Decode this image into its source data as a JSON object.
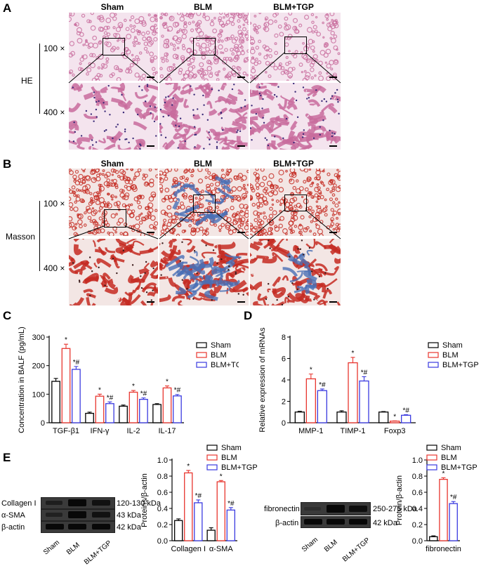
{
  "panels": {
    "A": {
      "letter": "A",
      "stain": "HE",
      "mag_low": "100 ×",
      "mag_high": "400 ×",
      "columns": [
        "Sham",
        "BLM",
        "BLM+TGP"
      ]
    },
    "B": {
      "letter": "B",
      "stain": "Masson",
      "mag_low": "100 ×",
      "mag_high": "400 ×",
      "columns": [
        "Sham",
        "BLM",
        "BLM+TGP"
      ]
    },
    "C": {
      "letter": "C"
    },
    "D": {
      "letter": "D"
    },
    "E": {
      "letter": "E",
      "blot1": {
        "proteins": [
          "Collagen I",
          "α-SMA",
          "β-actin"
        ],
        "kda": [
          "120-130 kDa",
          "43 kDa",
          "42 kDa"
        ],
        "lanes": [
          "Sham",
          "BLM",
          "BLM+TGP"
        ]
      },
      "blot2": {
        "proteins": [
          "fibronectin",
          "β-actin"
        ],
        "kda": [
          "250-275 kDa",
          "42 kDa"
        ],
        "lanes": [
          "Sham",
          "BLM",
          "BLM+TGP"
        ]
      }
    }
  },
  "colors": {
    "sham": "#000000",
    "blm": "#e8352e",
    "tgp": "#3a3ae0",
    "he_bg": "#f4e4ee",
    "he_tissue": "#c86b9c",
    "masson_red": "#c42a22",
    "masson_blue": "#4a6fb5"
  },
  "chart_data": [
    {
      "panel": "C",
      "type": "bar",
      "ylabel": "Concentration in BALF (pg/mL)",
      "ylim": [
        0,
        300
      ],
      "yticks": [
        "0",
        "100",
        "200",
        "300"
      ],
      "categories": [
        "TGF-β1",
        "IFN-γ",
        "IL-2",
        "IL-17"
      ],
      "legend": [
        "Sham",
        "BLM",
        "BLM+TGP"
      ],
      "legend_position": "right",
      "series": [
        {
          "name": "Sham",
          "values": [
            145,
            33,
            58,
            64
          ],
          "errors": [
            10,
            4,
            4,
            3
          ],
          "marks": [
            "",
            "",
            "",
            ""
          ]
        },
        {
          "name": "BLM",
          "values": [
            260,
            93,
            107,
            122
          ],
          "errors": [
            15,
            7,
            6,
            7
          ],
          "marks": [
            "*",
            "*",
            "*",
            "*"
          ]
        },
        {
          "name": "BLM+TGP",
          "values": [
            187,
            67,
            82,
            94
          ],
          "errors": [
            10,
            6,
            5,
            5
          ],
          "marks": [
            "*#",
            "*#",
            "*#",
            "*#"
          ]
        }
      ]
    },
    {
      "panel": "D",
      "type": "bar",
      "ylabel": "Relative expression of mRNAs",
      "ylim": [
        0,
        8
      ],
      "yticks": [
        "0",
        "2",
        "4",
        "6",
        "8"
      ],
      "categories": [
        "MMP-1",
        "TIMP-1",
        "Foxp3"
      ],
      "legend": [
        "Sham",
        "BLM",
        "BLM+TGP"
      ],
      "legend_position": "right",
      "series": [
        {
          "name": "Sham",
          "values": [
            1.0,
            1.0,
            1.0
          ],
          "errors": [
            0.07,
            0.12,
            0.05
          ],
          "marks": [
            "",
            "",
            ""
          ]
        },
        {
          "name": "BLM",
          "values": [
            4.1,
            5.6,
            0.15
          ],
          "errors": [
            0.45,
            0.5,
            0.03
          ],
          "marks": [
            "*",
            "*",
            "*"
          ]
        },
        {
          "name": "BLM+TGP",
          "values": [
            3.0,
            3.9,
            0.7
          ],
          "errors": [
            0.15,
            0.4,
            0.05
          ],
          "marks": [
            "*#",
            "*#",
            "*#"
          ]
        }
      ]
    },
    {
      "panel": "E-left",
      "type": "bar",
      "ylabel": "Proteins/β-actin",
      "ylim": [
        0,
        1.0
      ],
      "yticks": [
        "0.0",
        "0.2",
        "0.4",
        "0.6",
        "0.8",
        "1.0"
      ],
      "categories": [
        "Collagen I",
        "α-SMA"
      ],
      "legend": [
        "Sham",
        "BLM",
        "BLM+TGP"
      ],
      "legend_position": "top-right",
      "series": [
        {
          "name": "Sham",
          "values": [
            0.25,
            0.13
          ],
          "errors": [
            0.02,
            0.03
          ],
          "marks": [
            "",
            ""
          ]
        },
        {
          "name": "BLM",
          "values": [
            0.84,
            0.73
          ],
          "errors": [
            0.03,
            0.015
          ],
          "marks": [
            "*",
            "*"
          ]
        },
        {
          "name": "BLM+TGP",
          "values": [
            0.47,
            0.38
          ],
          "errors": [
            0.035,
            0.03
          ],
          "marks": [
            "*#",
            "*#"
          ]
        }
      ]
    },
    {
      "panel": "E-right",
      "type": "bar",
      "ylabel": "Protein/β-actin",
      "ylim": [
        0,
        1.0
      ],
      "yticks": [
        "0.0",
        "0.2",
        "0.4",
        "0.6",
        "0.8",
        "1.0"
      ],
      "categories": [
        "fibronectin"
      ],
      "legend": [
        "Sham",
        "BLM",
        "BLM+TGP"
      ],
      "legend_position": "top-right",
      "series": [
        {
          "name": "Sham",
          "values": [
            0.05
          ],
          "errors": [
            0.01
          ],
          "marks": [
            ""
          ]
        },
        {
          "name": "BLM",
          "values": [
            0.76
          ],
          "errors": [
            0.02
          ],
          "marks": [
            "*"
          ]
        },
        {
          "name": "BLM+TGP",
          "values": [
            0.46
          ],
          "errors": [
            0.025
          ],
          "marks": [
            "*#"
          ]
        }
      ]
    }
  ]
}
